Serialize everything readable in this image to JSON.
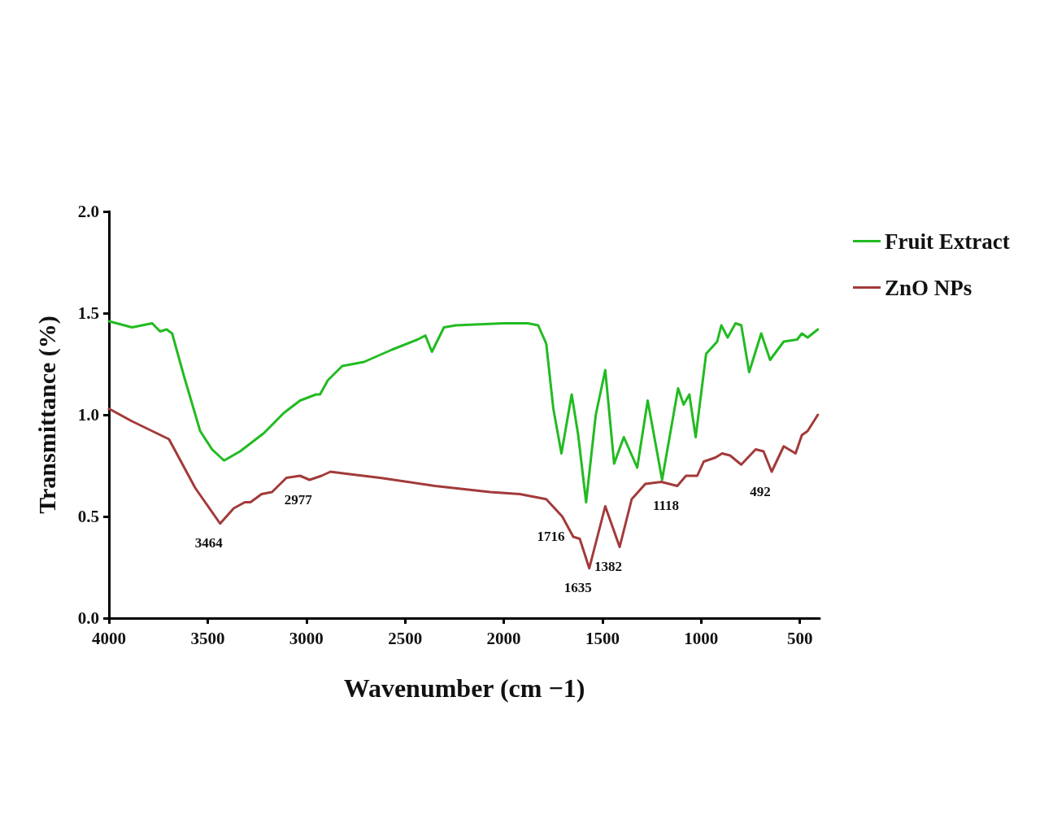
{
  "chart_data": {
    "type": "line",
    "xlabel": "Wavenumber (cm −1)",
    "ylabel": "Transmittance (%)",
    "xlim": [
      4000,
      400
    ],
    "xticks": [
      4000,
      3500,
      3000,
      2500,
      2000,
      1500,
      1000,
      500
    ],
    "ylim": [
      0,
      2
    ],
    "yticks": [
      {
        "value": 0,
        "label": "0.0"
      },
      {
        "value": 0.5,
        "label": "0.5"
      },
      {
        "value": 1,
        "label": "1.0"
      },
      {
        "value": 1.5,
        "label": "1.5"
      },
      {
        "value": 2,
        "label": "2.0"
      }
    ],
    "grid": false,
    "legend": "right",
    "marker": "none",
    "line_style": "solid",
    "series": [
      {
        "name": "Fruit Extract",
        "color": "#22bb22",
        "x": [
          4000,
          3883,
          3781,
          3741,
          3708,
          3680,
          3620,
          3538,
          3478,
          3417,
          3336,
          3215,
          3113,
          3032,
          2951,
          2931,
          2891,
          2818,
          2708,
          2567,
          2437,
          2397,
          2364,
          2303,
          2243,
          2000,
          1878,
          1826,
          1785,
          1749,
          1708,
          1656,
          1623,
          1583,
          1534,
          1486,
          1441,
          1392,
          1324,
          1271,
          1198,
          1117,
          1089,
          1060,
          1028,
          975,
          919,
          898,
          866,
          826,
          797,
          757,
          696,
          651,
          582,
          514,
          490,
          461,
          409
        ],
        "values": [
          1.46,
          1.43,
          1.45,
          1.41,
          1.42,
          1.4,
          1.19,
          0.92,
          0.83,
          0.775,
          0.82,
          0.91,
          1.01,
          1.07,
          1.1,
          1.1,
          1.17,
          1.24,
          1.26,
          1.32,
          1.37,
          1.39,
          1.31,
          1.43,
          1.44,
          1.45,
          1.45,
          1.44,
          1.35,
          1.03,
          0.81,
          1.1,
          0.9,
          0.57,
          1.0,
          1.22,
          0.76,
          0.89,
          0.74,
          1.07,
          0.68,
          1.13,
          1.05,
          1.1,
          0.89,
          1.3,
          1.36,
          1.44,
          1.38,
          1.45,
          1.44,
          1.21,
          1.4,
          1.27,
          1.36,
          1.37,
          1.4,
          1.38,
          1.42
        ]
      },
      {
        "name": "ZnO NPs",
        "color": "#a33a3a",
        "x": [
          4000,
          3887,
          3696,
          3563,
          3437,
          3368,
          3312,
          3283,
          3227,
          3174,
          3101,
          3032,
          2984,
          2923,
          2878,
          2797,
          2627,
          2348,
          2069,
          1919,
          1785,
          1704,
          1648,
          1615,
          1567,
          1486,
          1413,
          1352,
          1283,
          1202,
          1121,
          1077,
          1020,
          987,
          927,
          894,
          854,
          797,
          724,
          684,
          643,
          582,
          522,
          490,
          461,
          409
        ],
        "values": [
          1.03,
          0.97,
          0.88,
          0.64,
          0.465,
          0.54,
          0.57,
          0.57,
          0.61,
          0.62,
          0.69,
          0.7,
          0.68,
          0.7,
          0.72,
          0.71,
          0.69,
          0.65,
          0.62,
          0.61,
          0.585,
          0.5,
          0.4,
          0.39,
          0.245,
          0.55,
          0.35,
          0.585,
          0.66,
          0.67,
          0.65,
          0.7,
          0.7,
          0.77,
          0.79,
          0.81,
          0.8,
          0.755,
          0.83,
          0.82,
          0.72,
          0.845,
          0.81,
          0.9,
          0.92,
          1.0
        ]
      }
    ],
    "annotations": [
      {
        "text": "3464",
        "x": 3437,
        "y": 0.465
      },
      {
        "text": "2977",
        "x": 2984,
        "y": 0.68
      },
      {
        "text": "1716",
        "x": 1704,
        "y": 0.5
      },
      {
        "text": "1635",
        "x": 1567,
        "y": 0.245
      },
      {
        "text": "1382",
        "x": 1413,
        "y": 0.35
      },
      {
        "text": "1118",
        "x": 1121,
        "y": 0.65
      },
      {
        "text": "492",
        "x": 643,
        "y": 0.72
      }
    ]
  }
}
